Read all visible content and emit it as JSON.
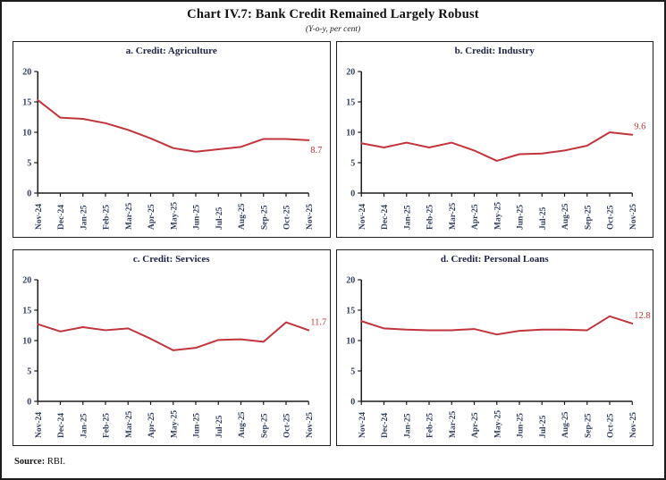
{
  "figure": {
    "title": "Chart IV.7: Bank Credit Remained Largely Robust",
    "subtitle": "(Y-o-y, per cent)",
    "source_label": "Source:",
    "source_value": " RBI."
  },
  "colors": {
    "line": "#c2343c",
    "axis": "#1a1a1a",
    "tick_label": "#33405c",
    "panel_title": "#1b2340"
  },
  "chart_data": [
    {
      "type": "line",
      "title": "a. Credit: Agriculture",
      "categories": [
        "Nov-24",
        "Dec-24",
        "Jan-25",
        "Feb-25",
        "Mar-25",
        "Apr-25",
        "May-25",
        "Jun-25",
        "Jul-25",
        "Aug-25",
        "Sep-25",
        "Oct-25",
        "Nov-25"
      ],
      "values": [
        15.3,
        12.4,
        12.2,
        11.5,
        10.4,
        9.0,
        7.4,
        6.8,
        7.2,
        7.6,
        8.9,
        8.9,
        8.7
      ],
      "end_label": "8.7",
      "end_label_position": "below",
      "ylim": [
        0,
        20
      ],
      "yticks": [
        0,
        5,
        10,
        15,
        20
      ],
      "xlabel": "",
      "ylabel": "",
      "grid": false,
      "legend": "none"
    },
    {
      "type": "line",
      "title": "b. Credit: Industry",
      "categories": [
        "Nov-24",
        "Dec-24",
        "Jan-25",
        "Feb-25",
        "Mar-25",
        "Apr-25",
        "May-25",
        "Jun-25",
        "Jul-25",
        "Aug-25",
        "Sep-25",
        "Oct-25",
        "Nov-25"
      ],
      "values": [
        8.2,
        7.5,
        8.3,
        7.5,
        8.3,
        7.0,
        5.3,
        6.4,
        6.5,
        7.0,
        7.8,
        10.0,
        9.6
      ],
      "end_label": "9.6",
      "end_label_position": "above",
      "ylim": [
        0,
        20
      ],
      "yticks": [
        0,
        5,
        10,
        15,
        20
      ],
      "xlabel": "",
      "ylabel": "",
      "grid": false,
      "legend": "none"
    },
    {
      "type": "line",
      "title": "c. Credit: Services",
      "categories": [
        "Nov-24",
        "Dec-24",
        "Jan-25",
        "Feb-25",
        "Mar-25",
        "Apr-25",
        "May-25",
        "Jun-25",
        "Jul-25",
        "Aug-25",
        "Sep-25",
        "Oct-25",
        "Nov-25"
      ],
      "values": [
        12.7,
        11.5,
        12.2,
        11.7,
        12.0,
        10.3,
        8.4,
        8.8,
        10.1,
        10.2,
        9.8,
        13.0,
        11.7
      ],
      "end_label": "11.7",
      "end_label_position": "above",
      "ylim": [
        0,
        20
      ],
      "yticks": [
        0,
        5,
        10,
        15,
        20
      ],
      "xlabel": "",
      "ylabel": "",
      "grid": false,
      "legend": "none"
    },
    {
      "type": "line",
      "title": "d. Credit: Personal Loans",
      "categories": [
        "Nov-24",
        "Dec-24",
        "Jan-25",
        "Feb-25",
        "Mar-25",
        "Apr-25",
        "May-25",
        "Jun-25",
        "Jul-25",
        "Aug-25",
        "Sep-25",
        "Oct-25",
        "Nov-25"
      ],
      "values": [
        13.2,
        12.0,
        11.8,
        11.7,
        11.7,
        11.9,
        11.0,
        11.6,
        11.8,
        11.8,
        11.7,
        14.0,
        12.8
      ],
      "end_label": "12.8",
      "end_label_position": "above",
      "ylim": [
        0,
        20
      ],
      "yticks": [
        0,
        5,
        10,
        15,
        20
      ],
      "xlabel": "",
      "ylabel": "",
      "grid": false,
      "legend": "none"
    }
  ]
}
